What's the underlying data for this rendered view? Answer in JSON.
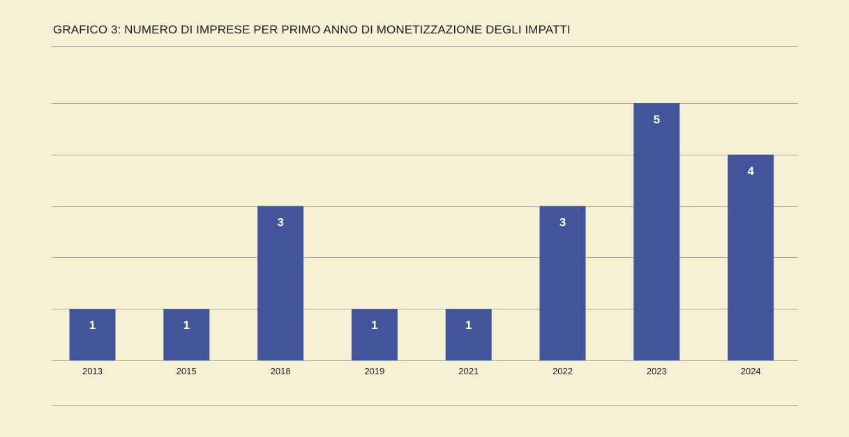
{
  "title": "GRAFICO 3: NUMERO DI IMPRESE PER PRIMO ANNO DI MONETIZZAZIONE DEGLI IMPATTI",
  "colors": {
    "background": "#f7f1d4",
    "bar": "#44549a",
    "gridline": "#a9acb8",
    "bar_label": "#ffffff",
    "tick_label": "#1b1b2a"
  },
  "chart_data": {
    "type": "bar",
    "categories": [
      "2013",
      "2015",
      "2018",
      "2019",
      "2021",
      "2022",
      "2023",
      "2024"
    ],
    "values": [
      1,
      1,
      3,
      1,
      1,
      3,
      5,
      4
    ],
    "data_labels": [
      "1",
      "1",
      "3",
      "1",
      "1",
      "3",
      "5",
      "4"
    ],
    "title": "GRAFICO 3: NUMERO DI IMPRESE PER PRIMO ANNO DI MONETIZZAZIONE DEGLI IMPATTI",
    "xlabel": "",
    "ylabel": "",
    "ylim": [
      0,
      5
    ],
    "y_gridlines": [
      1,
      2,
      3,
      4,
      5
    ],
    "grid": true,
    "legend": "none"
  }
}
